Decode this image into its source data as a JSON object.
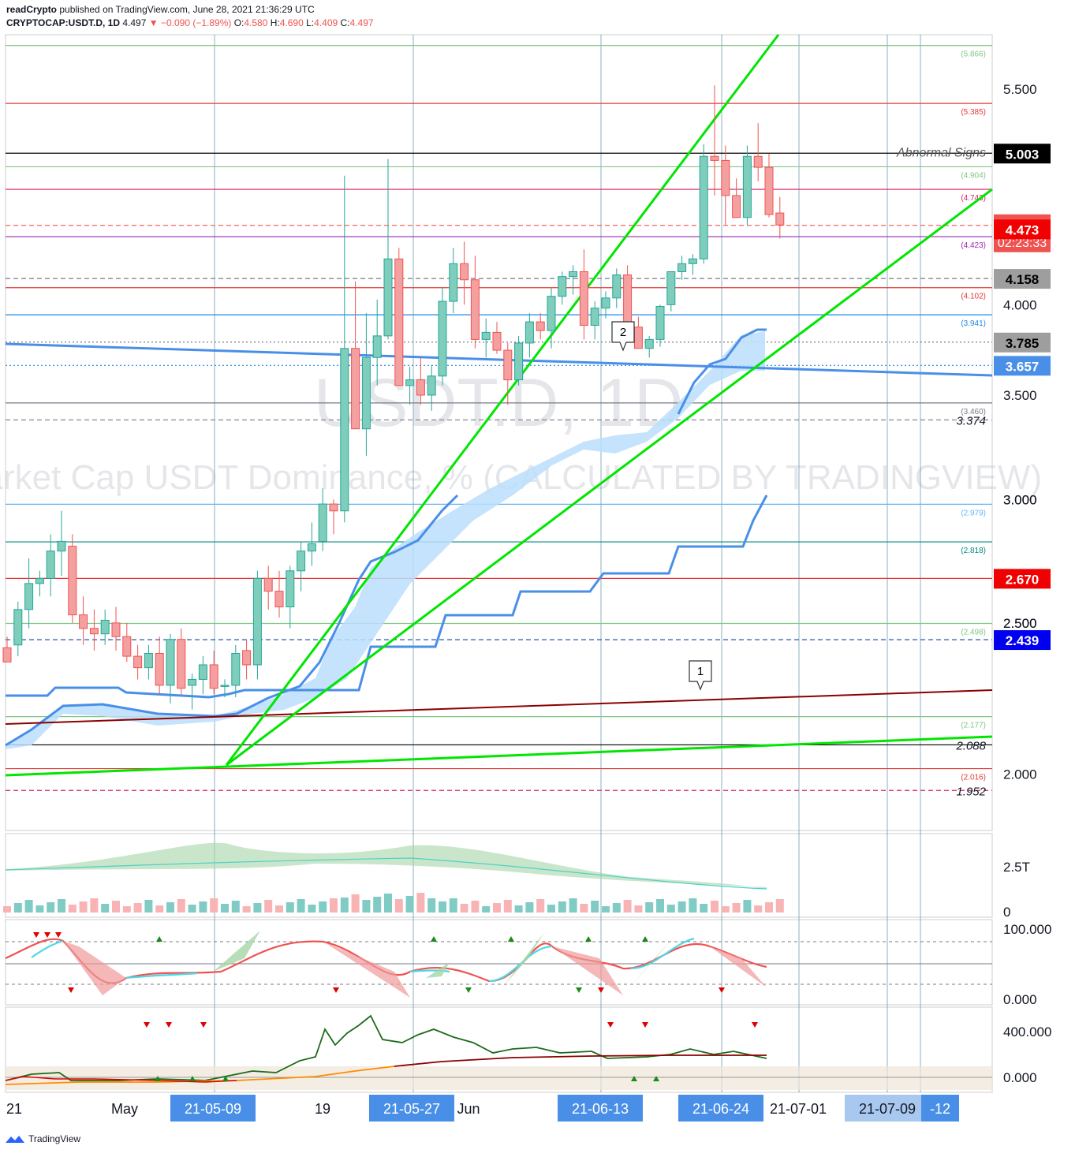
{
  "header": {
    "publisher": "readCrypto",
    "published_text": "published on TradingView.com, June 28, 2021 21:36:29 UTC",
    "symbol": "CRYPTOCAP:USDT.D, 1D",
    "last": "4.497",
    "change": "▼ −0.090 (−1.89%)",
    "o_label": "O:",
    "o_value": "4.580",
    "h_label": "H:",
    "h_value": "4.690",
    "l_label": "L:",
    "l_value": "4.409",
    "c_label": "C:",
    "c_value": "4.497"
  },
  "footer": {
    "brand": "TradingView"
  },
  "chart_data": {
    "type": "candlestick",
    "watermark_symbol": "USDT.D, 1D",
    "watermark_name": "Market Cap USDT Dominance, % (CALCULATED BY TRADINGVIEW)",
    "y_ticks": [
      "2.000",
      "2.500",
      "3.000",
      "3.500",
      "4.000",
      "5.500"
    ],
    "ylim": [
      1.84,
      5.96
    ],
    "x_labels": [
      {
        "text": "21",
        "boxed": false
      },
      {
        "text": "May",
        "boxed": false
      },
      {
        "text": "21-05-09",
        "boxed": true
      },
      {
        "text": "19",
        "boxed": false
      },
      {
        "text": "21-05-27",
        "boxed": true
      },
      {
        "text": "Jun",
        "boxed": false
      },
      {
        "text": "21-06-13",
        "boxed": true
      },
      {
        "text": "21-06-24",
        "boxed": true
      },
      {
        "text": "21-07-01",
        "boxed": false
      },
      {
        "text": "21-07-09",
        "boxed": "light"
      },
      {
        "text": "-12",
        "boxed": true
      }
    ],
    "candles": [
      [
        2.41,
        2.45,
        2.38,
        2.36
      ],
      [
        2.42,
        2.58,
        2.38,
        2.55
      ],
      [
        2.55,
        2.75,
        2.48,
        2.65
      ],
      [
        2.65,
        2.7,
        2.6,
        2.67
      ],
      [
        2.67,
        2.85,
        2.6,
        2.78
      ],
      [
        2.78,
        2.95,
        2.68,
        2.82
      ],
      [
        2.8,
        2.85,
        2.5,
        2.53
      ],
      [
        2.53,
        2.6,
        2.42,
        2.48
      ],
      [
        2.48,
        2.55,
        2.4,
        2.46
      ],
      [
        2.46,
        2.55,
        2.42,
        2.51
      ],
      [
        2.5,
        2.56,
        2.4,
        2.45
      ],
      [
        2.45,
        2.5,
        2.36,
        2.38
      ],
      [
        2.38,
        2.42,
        2.3,
        2.34
      ],
      [
        2.34,
        2.42,
        2.3,
        2.39
      ],
      [
        2.39,
        2.45,
        2.25,
        2.28
      ],
      [
        2.28,
        2.46,
        2.22,
        2.44
      ],
      [
        2.44,
        2.48,
        2.25,
        2.27
      ],
      [
        2.28,
        2.32,
        2.2,
        2.3
      ],
      [
        2.3,
        2.38,
        2.25,
        2.35
      ],
      [
        2.35,
        2.4,
        2.25,
        2.27
      ],
      [
        2.28,
        2.3,
        2.24,
        2.28
      ],
      [
        2.28,
        2.42,
        2.24,
        2.39
      ],
      [
        2.4,
        2.44,
        2.3,
        2.35
      ],
      [
        2.35,
        2.7,
        2.3,
        2.67
      ],
      [
        2.67,
        2.72,
        2.55,
        2.62
      ],
      [
        2.62,
        2.7,
        2.52,
        2.56
      ],
      [
        2.56,
        2.72,
        2.48,
        2.7
      ],
      [
        2.7,
        2.82,
        2.62,
        2.78
      ],
      [
        2.78,
        2.9,
        2.72,
        2.81
      ],
      [
        2.82,
        3.05,
        2.78,
        2.98
      ],
      [
        2.98,
        3.0,
        2.85,
        2.95
      ],
      [
        2.95,
        4.84,
        2.9,
        3.75
      ],
      [
        3.75,
        4.14,
        3.33,
        3.33
      ],
      [
        3.33,
        3.95,
        3.2,
        3.7
      ],
      [
        3.7,
        4.03,
        3.55,
        3.82
      ],
      [
        3.82,
        4.96,
        3.8,
        4.28
      ],
      [
        4.28,
        4.35,
        3.55,
        3.55
      ],
      [
        3.55,
        3.65,
        3.45,
        3.58
      ],
      [
        3.58,
        3.7,
        3.45,
        3.5
      ],
      [
        3.5,
        3.66,
        3.42,
        3.6
      ],
      [
        3.6,
        4.1,
        3.55,
        4.02
      ],
      [
        4.02,
        4.35,
        3.95,
        4.25
      ],
      [
        4.25,
        4.39,
        4.0,
        4.15
      ],
      [
        4.15,
        4.3,
        3.75,
        3.8
      ],
      [
        3.8,
        3.92,
        3.7,
        3.84
      ],
      [
        3.84,
        3.9,
        3.72,
        3.74
      ],
      [
        3.74,
        3.78,
        3.45,
        3.58
      ],
      [
        3.58,
        3.82,
        3.55,
        3.78
      ],
      [
        3.78,
        3.95,
        3.7,
        3.9
      ],
      [
        3.9,
        3.95,
        3.8,
        3.85
      ],
      [
        3.85,
        4.1,
        3.75,
        4.05
      ],
      [
        4.05,
        4.2,
        4.0,
        4.17
      ],
      [
        4.17,
        4.24,
        4.06,
        4.2
      ],
      [
        4.2,
        4.34,
        3.8,
        3.88
      ],
      [
        3.88,
        4.02,
        3.8,
        3.98
      ],
      [
        3.98,
        4.08,
        3.92,
        4.04
      ],
      [
        4.04,
        4.22,
        3.98,
        4.18
      ],
      [
        4.18,
        4.24,
        3.85,
        3.87
      ],
      [
        3.87,
        3.93,
        3.76,
        3.75
      ],
      [
        3.75,
        3.82,
        3.7,
        3.8
      ],
      [
        3.8,
        4.0,
        3.76,
        3.99
      ],
      [
        4.0,
        4.2,
        3.96,
        4.2
      ],
      [
        4.2,
        4.3,
        4.15,
        4.25
      ],
      [
        4.25,
        4.31,
        4.18,
        4.28
      ],
      [
        4.28,
        5.07,
        4.25,
        4.98
      ],
      [
        4.98,
        5.53,
        4.7,
        4.95
      ],
      [
        4.95,
        5.06,
        4.5,
        4.7
      ],
      [
        4.7,
        4.82,
        4.55,
        4.55
      ],
      [
        4.55,
        5.06,
        4.5,
        4.98
      ],
      [
        4.98,
        5.23,
        4.8,
        4.9
      ],
      [
        4.9,
        5.0,
        4.55,
        4.57
      ],
      [
        4.58,
        4.69,
        4.41,
        4.5
      ]
    ],
    "extra_ticks": [
      {
        "label": "2.500",
        "value": 2.5
      },
      {
        "label": "3.000",
        "value": 3.0
      }
    ],
    "levels": [
      {
        "label": "(5.866)",
        "value": 5.866,
        "color": "#81c784",
        "style": "solid"
      },
      {
        "label": "(5.385)",
        "value": 5.385,
        "color": "#e53935",
        "style": "solid"
      },
      {
        "label": "(4.904)",
        "value": 4.904,
        "color": "#81c784",
        "style": "solid"
      },
      {
        "label": "(4.743)",
        "value": 4.743,
        "color": "#d81b60",
        "style": "solid"
      },
      {
        "label": "(4.423)",
        "value": 4.423,
        "color": "#9c27b0",
        "style": "solid"
      },
      {
        "label": "(4.102)",
        "value": 4.102,
        "color": "#e53935",
        "style": "solid"
      },
      {
        "label": "(3.941)",
        "value": 3.941,
        "color": "#1e88e5",
        "style": "solid"
      },
      {
        "label": "(3.460)",
        "value": 3.46,
        "color": "#787b86",
        "style": "solid"
      },
      {
        "label": "(2.979)",
        "value": 2.979,
        "color": "#64b5f6",
        "style": "solid"
      },
      {
        "label": "(2.818)",
        "value": 2.818,
        "color": "#00897b",
        "style": "solid"
      },
      {
        "label": "(2.498)",
        "value": 2.498,
        "color": "#81c784",
        "style": "solid"
      },
      {
        "label": "(2.177)",
        "value": 2.177,
        "color": "#81c784",
        "style": "solid"
      },
      {
        "label": "(2.016)",
        "value": 2.016,
        "color": "#e53935",
        "style": "solid"
      },
      {
        "label": "",
        "value": 5.003,
        "color": "#000000",
        "style": "solid"
      },
      {
        "label": "",
        "value": 2.67,
        "color": "#e53935",
        "style": "solid"
      },
      {
        "label": "",
        "value": 2.088,
        "color": "#000000",
        "style": "solid"
      },
      {
        "label": "",
        "value": 4.158,
        "color": "#787b86",
        "style": "dashed"
      },
      {
        "label": "",
        "value": 3.785,
        "color": "#787b86",
        "style": "dotted"
      },
      {
        "label": "",
        "value": 3.657,
        "color": "#1e88e5",
        "style": "dotted"
      },
      {
        "label": "",
        "value": 4.497,
        "color": "#ef5350",
        "style": "dashed"
      },
      {
        "label": "",
        "value": 3.374,
        "color": "#787b86",
        "style": "dashed"
      },
      {
        "label": "",
        "value": 2.439,
        "color": "#0d47a1",
        "style": "dashed"
      },
      {
        "label": "",
        "value": 1.952,
        "color": "#d81b60",
        "style": "dashed"
      }
    ],
    "plain_price_labels": [
      {
        "text": "3.374",
        "value": 3.374
      },
      {
        "text": "2.088",
        "value": 2.088
      },
      {
        "text": "1.952",
        "value": 1.952
      }
    ],
    "price_badges": [
      {
        "text": "5.003",
        "value": 5.003,
        "bg": "#000000",
        "fg": "#ffffff"
      },
      {
        "text": "4.497",
        "value": 4.497,
        "bg": "#ef5350",
        "fg": "#ffffff",
        "sub": "02:23:33"
      },
      {
        "text": "4.473",
        "value": 4.473,
        "bg": "#f00000",
        "fg": "#ffffff"
      },
      {
        "text": "4.158",
        "value": 4.158,
        "bg": "#9e9e9e",
        "fg": "#000000"
      },
      {
        "text": "3.785",
        "value": 3.785,
        "bg": "#9e9e9e",
        "fg": "#000000"
      },
      {
        "text": "3.657",
        "value": 3.657,
        "bg": "#4a8fe7",
        "fg": "#ffffff"
      },
      {
        "text": "2.670",
        "value": 2.67,
        "bg": "#f00000",
        "fg": "#ffffff"
      },
      {
        "text": "2.439",
        "value": 2.439,
        "bg": "#0000ee",
        "fg": "#ffffff"
      }
    ],
    "annotations": [
      {
        "text": "Abnormal Signs",
        "value": 5.003
      },
      {
        "text": "1",
        "type": "callout"
      },
      {
        "text": "2",
        "type": "callout"
      }
    ],
    "panes": [
      {
        "name": "volume",
        "ticks": [
          "2.5T",
          "0"
        ]
      },
      {
        "name": "stoch",
        "ticks": [
          "100.000",
          "0.000"
        ]
      },
      {
        "name": "obv",
        "ticks": [
          "400.000",
          "0.000"
        ]
      }
    ]
  }
}
